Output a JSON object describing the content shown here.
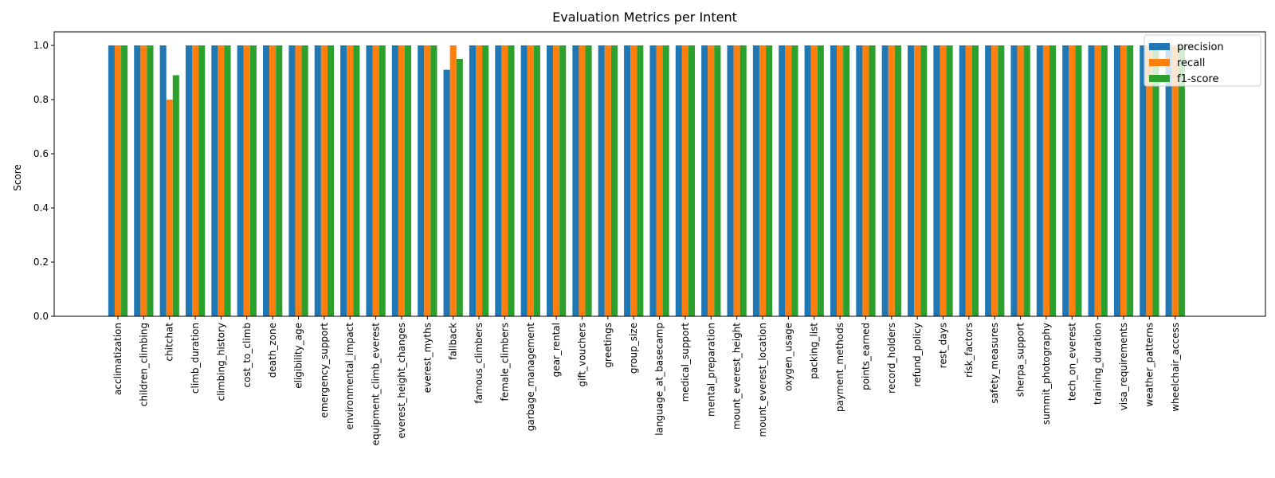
{
  "chart_data": {
    "type": "bar",
    "title": "Evaluation Metrics per Intent",
    "xlabel": "",
    "ylabel": "Score",
    "ylim": [
      0,
      1.05
    ],
    "yticks": [
      "0.0",
      "0.2",
      "0.4",
      "0.6",
      "0.8",
      "1.0"
    ],
    "grid": false,
    "legend_position": "top-right",
    "categories": [
      "acclimatization",
      "children_climbing",
      "chitchat",
      "climb_duration",
      "climbing_history",
      "cost_to_climb",
      "death_zone",
      "eligibility_age",
      "emergency_support",
      "environmental_impact",
      "equipment_climb_everest",
      "everest_height_changes",
      "everest_myths",
      "fallback",
      "famous_climbers",
      "female_climbers",
      "garbage_management",
      "gear_rental",
      "gift_vouchers",
      "greetings",
      "group_size",
      "language_at_basecamp",
      "medical_support",
      "mental_preparation",
      "mount_everest_height",
      "mount_everest_location",
      "oxygen_usage",
      "packing_list",
      "payment_methods",
      "points_earned",
      "record_holders",
      "refund_policy",
      "rest_days",
      "risk_factors",
      "safety_measures",
      "sherpa_support",
      "summit_photography",
      "tech_on_everest",
      "training_duration",
      "visa_requirements",
      "weather_patterns",
      "wheelchair_access"
    ],
    "series": [
      {
        "name": "precision",
        "color": "#1f77b4",
        "values": [
          1,
          1,
          1,
          1,
          1,
          1,
          1,
          1,
          1,
          1,
          1,
          1,
          1,
          0.91,
          1,
          1,
          1,
          1,
          1,
          1,
          1,
          1,
          1,
          1,
          1,
          1,
          1,
          1,
          1,
          1,
          1,
          1,
          1,
          1,
          1,
          1,
          1,
          1,
          1,
          1,
          1,
          1
        ]
      },
      {
        "name": "recall",
        "color": "#ff7f0e",
        "values": [
          1,
          1,
          0.8,
          1,
          1,
          1,
          1,
          1,
          1,
          1,
          1,
          1,
          1,
          1,
          1,
          1,
          1,
          1,
          1,
          1,
          1,
          1,
          1,
          1,
          1,
          1,
          1,
          1,
          1,
          1,
          1,
          1,
          1,
          1,
          1,
          1,
          1,
          1,
          1,
          1,
          1,
          1
        ]
      },
      {
        "name": "f1-score",
        "color": "#2ca02c",
        "values": [
          1,
          1,
          0.89,
          1,
          1,
          1,
          1,
          1,
          1,
          1,
          1,
          1,
          1,
          0.95,
          1,
          1,
          1,
          1,
          1,
          1,
          1,
          1,
          1,
          1,
          1,
          1,
          1,
          1,
          1,
          1,
          1,
          1,
          1,
          1,
          1,
          1,
          1,
          1,
          1,
          1,
          1,
          1
        ]
      }
    ]
  }
}
